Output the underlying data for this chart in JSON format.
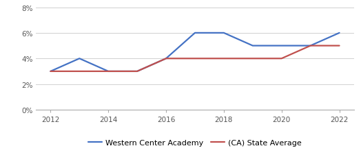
{
  "wca_years": [
    2012,
    2013,
    2014,
    2015,
    2016,
    2017,
    2018,
    2019,
    2020,
    2021,
    2022
  ],
  "wca_values": [
    3.0,
    4.0,
    3.0,
    3.0,
    4.0,
    6.0,
    6.0,
    5.0,
    5.0,
    5.0,
    6.0
  ],
  "ca_years": [
    2012,
    2013,
    2014,
    2015,
    2016,
    2017,
    2018,
    2019,
    2020,
    2021,
    2022
  ],
  "ca_values": [
    3.0,
    3.0,
    3.0,
    3.0,
    4.0,
    4.0,
    4.0,
    4.0,
    4.0,
    5.0,
    5.0
  ],
  "wca_color": "#4472C4",
  "ca_color": "#C0504D",
  "wca_label": "Western Center Academy",
  "ca_label": "(CA) State Average",
  "ylim": [
    0,
    8
  ],
  "yticks": [
    0,
    2,
    4,
    6,
    8
  ],
  "xticks": [
    2012,
    2014,
    2016,
    2018,
    2020,
    2022
  ],
  "background_color": "#ffffff",
  "grid_color": "#d0d0d0",
  "line_width": 1.6,
  "tick_fontsize": 7.5,
  "legend_fontsize": 8
}
